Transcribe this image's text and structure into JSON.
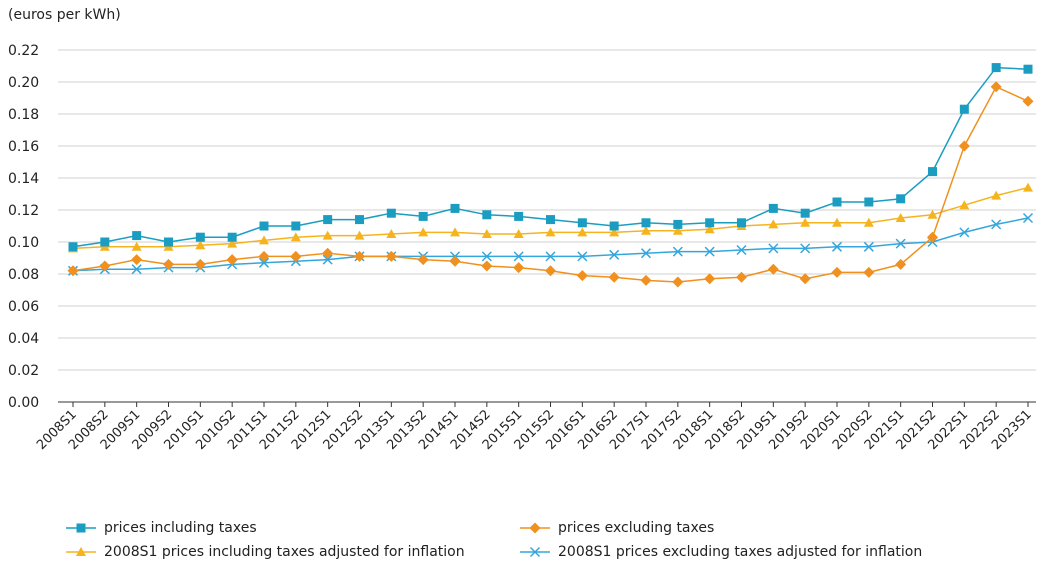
{
  "chart_data": {
    "type": "line",
    "title": "",
    "ylabel": "(euros per kWh)",
    "xlabel": "",
    "ylim": [
      0,
      0.22
    ],
    "yticks": [
      "0.00",
      "0.02",
      "0.04",
      "0.06",
      "0.08",
      "0.10",
      "0.12",
      "0.14",
      "0.16",
      "0.18",
      "0.20",
      "0.22"
    ],
    "grid": "horizontal",
    "legend_position": "bottom",
    "categories": [
      "2008S1",
      "2008S2",
      "2009S1",
      "2009S2",
      "2010S1",
      "2010S2",
      "2011S1",
      "2011S2",
      "2012S1",
      "2012S2",
      "2013S1",
      "2013S2",
      "2014S1",
      "2014S2",
      "2015S1",
      "2015S2",
      "2016S1",
      "2016S2",
      "2017S1",
      "2017S2",
      "2018S1",
      "2018S2",
      "2019S1",
      "2019S2",
      "2020S1",
      "2020S2",
      "2021S1",
      "2021S2",
      "2022S1",
      "2022S2",
      "2023S1"
    ],
    "series": [
      {
        "name": "prices including taxes",
        "color": "#1a9dc1",
        "marker": "square",
        "values": [
          0.097,
          0.1,
          0.104,
          0.1,
          0.103,
          0.103,
          0.11,
          0.11,
          0.114,
          0.114,
          0.118,
          0.116,
          0.121,
          0.117,
          0.116,
          0.114,
          0.112,
          0.11,
          0.112,
          0.111,
          0.112,
          0.112,
          0.121,
          0.118,
          0.125,
          0.125,
          0.127,
          0.144,
          0.183,
          0.209,
          0.208
        ]
      },
      {
        "name": "prices excluding taxes",
        "color": "#f0901e",
        "marker": "diamond",
        "values": [
          0.082,
          0.085,
          0.089,
          0.086,
          0.086,
          0.089,
          0.091,
          0.091,
          0.093,
          0.091,
          0.091,
          0.089,
          0.088,
          0.085,
          0.084,
          0.082,
          0.079,
          0.078,
          0.076,
          0.075,
          0.077,
          0.078,
          0.083,
          0.077,
          0.081,
          0.081,
          0.086,
          0.103,
          0.16,
          0.197,
          0.188
        ]
      },
      {
        "name": "2008S1 prices including taxes adjusted for inflation",
        "color": "#f5b41e",
        "marker": "triangle",
        "values": [
          0.096,
          0.097,
          0.097,
          0.097,
          0.098,
          0.099,
          0.101,
          0.103,
          0.104,
          0.104,
          0.105,
          0.106,
          0.106,
          0.105,
          0.105,
          0.106,
          0.106,
          0.106,
          0.107,
          0.107,
          0.108,
          0.11,
          0.111,
          0.112,
          0.112,
          0.112,
          0.115,
          0.117,
          0.123,
          0.129,
          0.134
        ]
      },
      {
        "name": "2008S1 prices excluding taxes adjusted for inflation",
        "color": "#35a6dc",
        "marker": "x",
        "values": [
          0.082,
          0.083,
          0.083,
          0.084,
          0.084,
          0.086,
          0.087,
          0.088,
          0.089,
          0.091,
          0.091,
          0.091,
          0.091,
          0.091,
          0.091,
          0.091,
          0.091,
          0.092,
          0.093,
          0.094,
          0.094,
          0.095,
          0.096,
          0.096,
          0.097,
          0.097,
          0.099,
          0.1,
          0.106,
          0.111,
          0.115
        ]
      }
    ]
  }
}
